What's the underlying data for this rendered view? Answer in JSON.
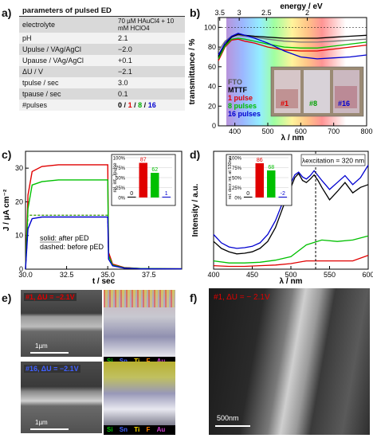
{
  "panel_labels": {
    "a": "a)",
    "b": "b)",
    "c": "c)",
    "d": "d)",
    "e": "e)",
    "f": "f)"
  },
  "table": {
    "header": "parameters of pulsed ED",
    "rows": [
      {
        "param": "electrolyte",
        "value": "70 µM HAuCl4 + 10 mM HClO4"
      },
      {
        "param": "pH",
        "value": "2.1"
      },
      {
        "param": "Upulse / VAg/AgCl",
        "value": "−2.0"
      },
      {
        "param": "Upause / VAg/AgCl",
        "value": "+0.1"
      },
      {
        "param": "ΔU / V",
        "value": "−2.1"
      },
      {
        "param": "tpulse / sec",
        "value": "3.0"
      },
      {
        "param": "tpause / sec",
        "value": "0.1"
      }
    ],
    "pulses_label": "#pulses",
    "pulses": [
      "0",
      "1",
      "8",
      "16"
    ],
    "pulses_sep": "/"
  },
  "panel_b": {
    "xlabel": "λ / nm",
    "ylabel": "transmittance / %",
    "toplabel": "energy / eV",
    "xticks": [
      "400",
      "500",
      "600",
      "700",
      "800"
    ],
    "yticks": [
      "0",
      "20",
      "40",
      "60",
      "80",
      "100"
    ],
    "topticks": [
      "3.5",
      "3",
      "2.5",
      "2"
    ],
    "legend": [
      "FTO",
      "MTTF",
      "1 pulse",
      "8 pulses",
      "16 pulses"
    ],
    "photo_labels": [
      "#1",
      "#8",
      "#16"
    ]
  },
  "panel_c": {
    "xlabel": "t / sec",
    "ylabel": "J / µA cm⁻²",
    "xticks": [
      "30.0",
      "32.5",
      "35.0",
      "37.5"
    ],
    "yticks": [
      "0",
      "10",
      "20",
      "30"
    ],
    "inset_ylabel": "rel. int. Jpulse",
    "inset_yticks": [
      "0%",
      "25%",
      "50%",
      "75%",
      "100%"
    ],
    "inset_values": [
      0,
      87,
      62,
      1
    ],
    "inset_labels": [
      "0",
      "87",
      "62",
      "1"
    ],
    "note_solid": "solid: after pED",
    "note_dashed": "dashed: before pED"
  },
  "panel_d": {
    "xlabel": "λ / nm",
    "ylabel": "Intensity / a.u.",
    "xticks": [
      "400",
      "450",
      "500",
      "550",
      "600"
    ],
    "excitation": "λexcitation = 320 nm",
    "inset_ylabel": "rel. decr. int. at 530nm",
    "inset_yticks": [
      "0%",
      "25%",
      "50%",
      "75%",
      "100%"
    ],
    "inset_values": [
      0,
      86,
      68,
      -2
    ],
    "inset_labels": [
      "0",
      "86",
      "68",
      "-2"
    ]
  },
  "panel_e": {
    "top_label": "#1, ΔU = −2.1V",
    "bottom_label": "#16, ΔU = −2.1V",
    "scale": "1µm",
    "elements": [
      "Si",
      "Sn",
      "Ti",
      "F",
      "Au"
    ]
  },
  "panel_f": {
    "label": "#1, ΔU = − 2.1V",
    "scale": "500nm"
  },
  "colors": {
    "p0": "#000000",
    "p1": "#e00000",
    "p8": "#00c000",
    "p16": "#0000d0"
  },
  "chart_data": [
    {
      "type": "line",
      "title": "",
      "xlabel": "λ / nm",
      "ylabel": "transmittance / %",
      "xlim": [
        350,
        800
      ],
      "ylim": [
        0,
        110
      ],
      "series": [
        {
          "name": "FTO",
          "x": [
            350,
            370,
            390,
            410,
            430,
            460,
            500,
            550,
            600,
            650,
            700,
            750,
            800
          ],
          "y": [
            76,
            86,
            91,
            92,
            91,
            90,
            88,
            86,
            85,
            85,
            86,
            87,
            88
          ]
        },
        {
          "name": "MTTF",
          "x": [
            350,
            370,
            390,
            410,
            430,
            460,
            500,
            550,
            600,
            650,
            700,
            750,
            800
          ],
          "y": [
            70,
            82,
            90,
            93,
            92,
            91,
            90,
            89,
            89,
            89,
            90,
            91,
            92
          ]
        },
        {
          "name": "1 pulse",
          "x": [
            350,
            370,
            390,
            410,
            430,
            460,
            500,
            550,
            600,
            650,
            700,
            750,
            800
          ],
          "y": [
            66,
            80,
            87,
            88,
            86,
            84,
            80,
            77,
            76,
            76,
            78,
            80,
            82
          ]
        },
        {
          "name": "8 pulses",
          "x": [
            350,
            370,
            390,
            410,
            430,
            460,
            500,
            550,
            600,
            650,
            700,
            750,
            800
          ],
          "y": [
            68,
            81,
            88,
            89,
            88,
            86,
            83,
            80,
            79,
            79,
            81,
            83,
            85
          ]
        },
        {
          "name": "16 pulses",
          "x": [
            350,
            370,
            390,
            410,
            430,
            460,
            500,
            550,
            600,
            650,
            700,
            750,
            800
          ],
          "y": [
            72,
            84,
            91,
            94,
            92,
            89,
            84,
            76,
            70,
            68,
            69,
            70,
            72
          ]
        }
      ]
    },
    {
      "type": "line",
      "title": "",
      "xlabel": "t / sec",
      "ylabel": "J / µA cm⁻²",
      "xlim": [
        30,
        39.5
      ],
      "ylim": [
        0,
        35
      ],
      "series": [
        {
          "name": "1 pulse",
          "x": [
            30.0,
            30.15,
            30.4,
            31,
            32,
            33,
            34,
            35.0,
            35.05,
            35.3,
            36,
            37,
            39.5
          ],
          "y": [
            0,
            22,
            29,
            30.5,
            31,
            31,
            31,
            31,
            5,
            1.5,
            0.5,
            0.2,
            0.1
          ]
        },
        {
          "name": "8 pulses",
          "x": [
            30.0,
            30.15,
            30.4,
            31,
            32,
            33,
            34,
            35.0,
            35.05,
            35.3,
            36,
            37,
            39.5
          ],
          "y": [
            0,
            18,
            25,
            26,
            26.5,
            26.5,
            26.5,
            26.5,
            4,
            1.2,
            0.4,
            0.2,
            0.1
          ]
        },
        {
          "name": "16 pulses",
          "x": [
            30.0,
            30.15,
            30.4,
            31,
            32,
            33,
            34,
            35.0,
            35.05,
            35.3,
            36,
            37,
            39.5
          ],
          "y": [
            0,
            12,
            15,
            15.5,
            15.5,
            15.5,
            15.5,
            15.5,
            3,
            1,
            0.3,
            0.1,
            0.1
          ]
        }
      ],
      "inset": {
        "type": "bar",
        "ylabel": "rel. int. Jpulse",
        "values": [
          0,
          87,
          62,
          1
        ],
        "ylim": [
          0,
          100
        ]
      }
    },
    {
      "type": "line",
      "title": "",
      "xlabel": "λ / nm",
      "ylabel": "Intensity / a.u.",
      "xlim": [
        400,
        600
      ],
      "ylim": [
        0,
        170
      ],
      "series": [
        {
          "name": "0 pulses",
          "x": [
            400,
            410,
            420,
            430,
            440,
            450,
            460,
            470,
            480,
            490,
            500,
            505,
            510,
            515,
            520,
            525,
            530,
            535,
            540,
            550,
            560,
            570,
            580,
            590,
            600
          ],
          "y": [
            40,
            30,
            25,
            22,
            23,
            25,
            30,
            40,
            60,
            90,
            118,
            132,
            138,
            128,
            125,
            130,
            136,
            128,
            118,
            100,
            112,
            125,
            110,
            118,
            122
          ]
        },
        {
          "name": "1 pulse",
          "x": [
            400,
            420,
            440,
            460,
            480,
            500,
            520,
            540,
            560,
            580,
            600
          ],
          "y": [
            5,
            4,
            4,
            5,
            6,
            8,
            12,
            12,
            12,
            12,
            20
          ]
        },
        {
          "name": "8 pulses",
          "x": [
            400,
            420,
            440,
            460,
            480,
            500,
            520,
            540,
            560,
            580,
            600
          ],
          "y": [
            12,
            9,
            9,
            10,
            13,
            18,
            35,
            42,
            40,
            42,
            48
          ]
        },
        {
          "name": "16 pulses",
          "x": [
            400,
            410,
            420,
            430,
            440,
            450,
            460,
            470,
            480,
            490,
            500,
            505,
            510,
            515,
            520,
            525,
            530,
            535,
            540,
            550,
            560,
            570,
            580,
            590,
            600
          ],
          "y": [
            50,
            38,
            32,
            30,
            31,
            33,
            38,
            50,
            70,
            98,
            124,
            136,
            140,
            133,
            130,
            135,
            142,
            135,
            128,
            115,
            125,
            135,
            122,
            132,
            150
          ]
        }
      ],
      "inset": {
        "type": "bar",
        "ylabel": "rel. decr. int. at 530nm",
        "values": [
          0,
          86,
          68,
          -2
        ],
        "ylim": [
          0,
          100
        ]
      }
    }
  ]
}
